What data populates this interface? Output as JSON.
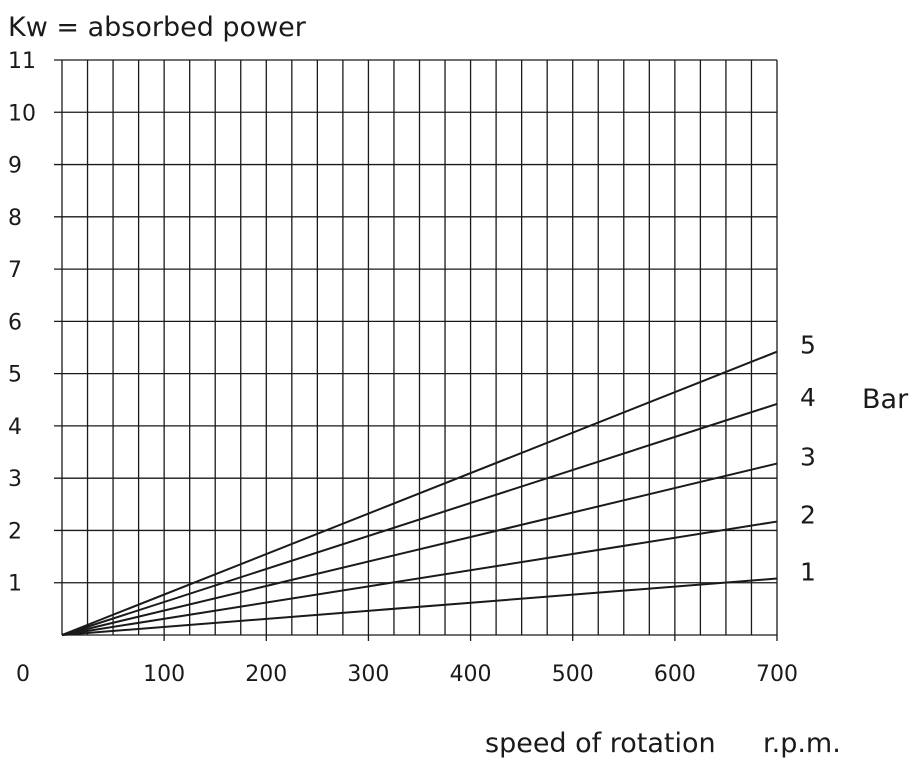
{
  "chart_data": {
    "type": "line",
    "title": "Kw = absorbed power",
    "xlabel": "speed of rotation",
    "xunit": "r.p.m.",
    "legend_title": "Bar",
    "xlim": [
      0,
      700
    ],
    "ylim": [
      0,
      11
    ],
    "x_minor_step": 25,
    "x_ticks": [
      0,
      100,
      200,
      300,
      400,
      500,
      600,
      700
    ],
    "y_ticks": [
      1,
      2,
      3,
      4,
      5,
      6,
      7,
      8,
      9,
      10,
      11
    ],
    "origin_label": "0",
    "grid": true,
    "series": [
      {
        "name": "1",
        "x": [
          0,
          700
        ],
        "values": [
          0,
          1.08
        ]
      },
      {
        "name": "2",
        "x": [
          0,
          700
        ],
        "values": [
          0,
          2.17
        ]
      },
      {
        "name": "3",
        "x": [
          0,
          700
        ],
        "values": [
          0,
          3.28
        ]
      },
      {
        "name": "4",
        "x": [
          0,
          700
        ],
        "values": [
          0,
          4.42
        ]
      },
      {
        "name": "5",
        "x": [
          0,
          700
        ],
        "values": [
          0,
          5.42
        ]
      }
    ]
  }
}
